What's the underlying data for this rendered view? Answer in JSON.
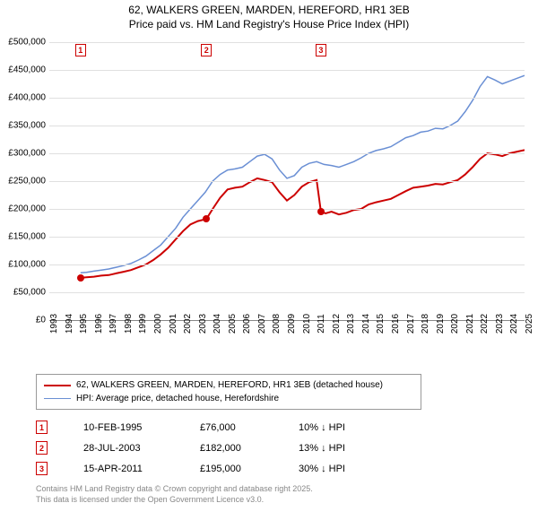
{
  "title": {
    "line1": "62, WALKERS GREEN, MARDEN, HEREFORD, HR1 3EB",
    "line2": "Price paid vs. HM Land Registry's House Price Index (HPI)"
  },
  "chart": {
    "type": "line",
    "background_color": "#ffffff",
    "grid_color": "#e0e0e0",
    "x": {
      "min": 1993,
      "max": 2025,
      "ticks": [
        1993,
        1994,
        1995,
        1996,
        1997,
        1998,
        1999,
        2000,
        2001,
        2002,
        2003,
        2004,
        2005,
        2006,
        2007,
        2008,
        2009,
        2010,
        2011,
        2012,
        2013,
        2014,
        2015,
        2016,
        2017,
        2018,
        2019,
        2020,
        2021,
        2022,
        2023,
        2024,
        2025
      ]
    },
    "y": {
      "min": 0,
      "max": 500000,
      "ticks": [
        {
          "v": 0,
          "label": "£0"
        },
        {
          "v": 50000,
          "label": "£50,000"
        },
        {
          "v": 100000,
          "label": "£100,000"
        },
        {
          "v": 150000,
          "label": "£150,000"
        },
        {
          "v": 200000,
          "label": "£200,000"
        },
        {
          "v": 250000,
          "label": "£250,000"
        },
        {
          "v": 300000,
          "label": "£300,000"
        },
        {
          "v": 350000,
          "label": "£350,000"
        },
        {
          "v": 400000,
          "label": "£400,000"
        },
        {
          "v": 450000,
          "label": "£450,000"
        },
        {
          "v": 500000,
          "label": "£500,000"
        }
      ]
    },
    "series": [
      {
        "name": "property",
        "label": "62, WALKERS GREEN, MARDEN, HEREFORD, HR1 3EB (detached house)",
        "color": "#cc0000",
        "line_width": 2,
        "data": [
          [
            1995.1,
            76000
          ],
          [
            1995.5,
            77000
          ],
          [
            1996,
            78000
          ],
          [
            1996.5,
            80000
          ],
          [
            1997,
            81000
          ],
          [
            1997.5,
            84000
          ],
          [
            1998,
            87000
          ],
          [
            1998.5,
            90000
          ],
          [
            1999,
            95000
          ],
          [
            1999.5,
            100000
          ],
          [
            2000,
            108000
          ],
          [
            2000.5,
            118000
          ],
          [
            2001,
            130000
          ],
          [
            2001.5,
            145000
          ],
          [
            2002,
            160000
          ],
          [
            2002.5,
            172000
          ],
          [
            2003,
            178000
          ],
          [
            2003.58,
            182000
          ],
          [
            2004,
            200000
          ],
          [
            2004.5,
            220000
          ],
          [
            2005,
            235000
          ],
          [
            2005.5,
            238000
          ],
          [
            2006,
            240000
          ],
          [
            2006.5,
            248000
          ],
          [
            2007,
            255000
          ],
          [
            2007.5,
            252000
          ],
          [
            2008,
            248000
          ],
          [
            2008.5,
            230000
          ],
          [
            2009,
            215000
          ],
          [
            2009.5,
            225000
          ],
          [
            2010,
            240000
          ],
          [
            2010.5,
            248000
          ],
          [
            2011,
            252000
          ],
          [
            2011.29,
            195000
          ],
          [
            2011.6,
            192000
          ],
          [
            2012,
            195000
          ],
          [
            2012.5,
            190000
          ],
          [
            2013,
            193000
          ],
          [
            2013.5,
            198000
          ],
          [
            2014,
            200000
          ],
          [
            2014.5,
            208000
          ],
          [
            2015,
            212000
          ],
          [
            2015.5,
            215000
          ],
          [
            2016,
            218000
          ],
          [
            2016.5,
            225000
          ],
          [
            2017,
            232000
          ],
          [
            2017.5,
            238000
          ],
          [
            2018,
            240000
          ],
          [
            2018.5,
            242000
          ],
          [
            2019,
            245000
          ],
          [
            2019.5,
            244000
          ],
          [
            2020,
            248000
          ],
          [
            2020.5,
            252000
          ],
          [
            2021,
            262000
          ],
          [
            2021.5,
            275000
          ],
          [
            2022,
            290000
          ],
          [
            2022.5,
            300000
          ],
          [
            2023,
            298000
          ],
          [
            2023.5,
            295000
          ],
          [
            2024,
            300000
          ],
          [
            2024.5,
            303000
          ],
          [
            2025,
            306000
          ]
        ]
      },
      {
        "name": "hpi",
        "label": "HPI: Average price, detached house, Herefordshire",
        "color": "#6a8fd4",
        "line_width": 1.5,
        "data": [
          [
            1995.1,
            85000
          ],
          [
            1995.5,
            86000
          ],
          [
            1996,
            88000
          ],
          [
            1996.5,
            90000
          ],
          [
            1997,
            92000
          ],
          [
            1997.5,
            95000
          ],
          [
            1998,
            98000
          ],
          [
            1998.5,
            102000
          ],
          [
            1999,
            108000
          ],
          [
            1999.5,
            115000
          ],
          [
            2000,
            125000
          ],
          [
            2000.5,
            135000
          ],
          [
            2001,
            150000
          ],
          [
            2001.5,
            165000
          ],
          [
            2002,
            185000
          ],
          [
            2002.5,
            200000
          ],
          [
            2003,
            215000
          ],
          [
            2003.5,
            230000
          ],
          [
            2004,
            250000
          ],
          [
            2004.5,
            262000
          ],
          [
            2005,
            270000
          ],
          [
            2005.5,
            272000
          ],
          [
            2006,
            275000
          ],
          [
            2006.5,
            285000
          ],
          [
            2007,
            295000
          ],
          [
            2007.5,
            298000
          ],
          [
            2008,
            290000
          ],
          [
            2008.5,
            270000
          ],
          [
            2009,
            255000
          ],
          [
            2009.5,
            260000
          ],
          [
            2010,
            275000
          ],
          [
            2010.5,
            282000
          ],
          [
            2011,
            285000
          ],
          [
            2011.5,
            280000
          ],
          [
            2012,
            278000
          ],
          [
            2012.5,
            275000
          ],
          [
            2013,
            280000
          ],
          [
            2013.5,
            285000
          ],
          [
            2014,
            292000
          ],
          [
            2014.5,
            300000
          ],
          [
            2015,
            305000
          ],
          [
            2015.5,
            308000
          ],
          [
            2016,
            312000
          ],
          [
            2016.5,
            320000
          ],
          [
            2017,
            328000
          ],
          [
            2017.5,
            332000
          ],
          [
            2018,
            338000
          ],
          [
            2018.5,
            340000
          ],
          [
            2019,
            345000
          ],
          [
            2019.5,
            344000
          ],
          [
            2020,
            350000
          ],
          [
            2020.5,
            358000
          ],
          [
            2021,
            375000
          ],
          [
            2021.5,
            395000
          ],
          [
            2022,
            420000
          ],
          [
            2022.5,
            438000
          ],
          [
            2023,
            432000
          ],
          [
            2023.5,
            425000
          ],
          [
            2024,
            430000
          ],
          [
            2024.5,
            435000
          ],
          [
            2025,
            440000
          ]
        ]
      }
    ],
    "markers": [
      {
        "n": "1",
        "x": 1995.1,
        "y": 76000
      },
      {
        "n": "2",
        "x": 2003.58,
        "y": 182000
      },
      {
        "n": "3",
        "x": 2011.29,
        "y": 195000
      }
    ]
  },
  "legend": {
    "items": [
      {
        "color": "#cc0000",
        "width": 2,
        "label": "62, WALKERS GREEN, MARDEN, HEREFORD, HR1 3EB (detached house)"
      },
      {
        "color": "#6a8fd4",
        "width": 1.5,
        "label": "HPI: Average price, detached house, Herefordshire"
      }
    ]
  },
  "sales": [
    {
      "n": "1",
      "date": "10-FEB-1995",
      "price": "£76,000",
      "hpi": "10% ↓ HPI"
    },
    {
      "n": "2",
      "date": "28-JUL-2003",
      "price": "£182,000",
      "hpi": "13% ↓ HPI"
    },
    {
      "n": "3",
      "date": "15-APR-2011",
      "price": "£195,000",
      "hpi": "30% ↓ HPI"
    }
  ],
  "footer": {
    "line1": "Contains HM Land Registry data © Crown copyright and database right 2025.",
    "line2": "This data is licensed under the Open Government Licence v3.0."
  }
}
